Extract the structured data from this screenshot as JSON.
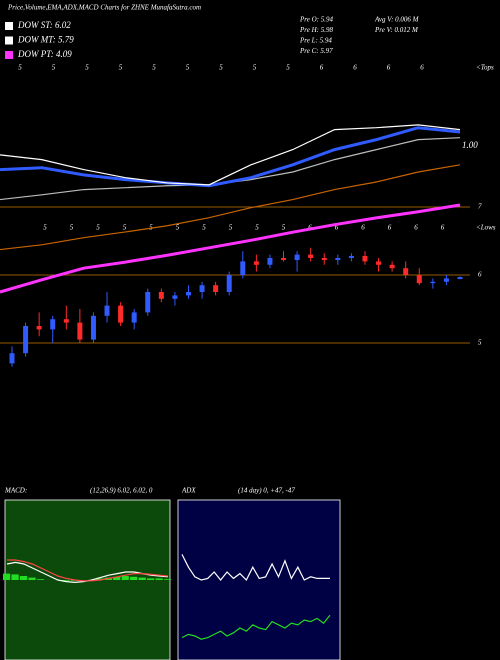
{
  "chart_data": [
    {
      "type": "candlestick",
      "title": "Price,Volume,EMA,ADX,MACD Charts for ZHNE MunafaSutra.com",
      "legend_items": [
        {
          "label": "DOW ST: 6.02",
          "color": "#ffffff"
        },
        {
          "label": "DOW MT: 5.79",
          "color": "#ffffff"
        },
        {
          "label": "DOW PT: 4.09",
          "color": "#ff33ff"
        }
      ],
      "info_left": [
        "Pre  O: 5.94",
        "Pre  H: 5.98",
        "Pre  L: 5.94",
        "Pre  C: 5.97"
      ],
      "info_right": [
        "Avg  V: 0.006  M",
        "Pre  V: 0.012  M"
      ],
      "top_label": "<Tops",
      "low_label": "<Lows",
      "top_markers": [
        "5",
        "5",
        "5",
        "5",
        "5",
        "5",
        "5",
        "5",
        "5",
        "6",
        "6",
        "6",
        "6"
      ],
      "low_markers": [
        "5",
        "5",
        "5",
        "5",
        "5",
        "5",
        "5",
        "5",
        "5",
        "5",
        "6",
        "6",
        "6",
        "6",
        "6",
        "6"
      ],
      "open": [
        4.7,
        4.85,
        5.25,
        5.2,
        5.35,
        5.3,
        5.05,
        5.4,
        5.55,
        5.3,
        5.45,
        5.75,
        5.65,
        5.7,
        5.75,
        5.85,
        5.75,
        6.0,
        6.2,
        6.15,
        6.25,
        6.22,
        6.3,
        6.25,
        6.22,
        6.25,
        6.28,
        6.2,
        6.15,
        6.1,
        6.0,
        5.88,
        5.9,
        5.94
      ],
      "high": [
        4.95,
        5.3,
        5.45,
        5.4,
        5.55,
        5.5,
        5.45,
        5.75,
        5.6,
        5.5,
        5.8,
        5.8,
        5.75,
        5.85,
        5.9,
        5.9,
        6.05,
        6.35,
        6.3,
        6.3,
        6.35,
        6.35,
        6.4,
        6.32,
        6.3,
        6.32,
        6.35,
        6.25,
        6.2,
        6.2,
        6.1,
        5.95,
        6.0,
        5.98
      ],
      "low": [
        4.65,
        4.8,
        5.1,
        5.0,
        5.2,
        5.0,
        5.0,
        5.3,
        5.25,
        5.2,
        5.4,
        5.6,
        5.55,
        5.65,
        5.65,
        5.7,
        5.7,
        5.95,
        6.05,
        6.1,
        6.2,
        6.05,
        6.2,
        6.15,
        6.15,
        6.2,
        6.15,
        6.05,
        6.05,
        5.95,
        5.85,
        5.8,
        5.85,
        5.94
      ],
      "close": [
        4.85,
        5.25,
        5.2,
        5.35,
        5.3,
        5.05,
        5.4,
        5.55,
        5.3,
        5.45,
        5.75,
        5.65,
        5.7,
        5.75,
        5.85,
        5.75,
        6.0,
        6.2,
        6.15,
        6.25,
        6.22,
        6.3,
        6.25,
        6.22,
        6.25,
        6.28,
        6.2,
        6.15,
        6.1,
        6.0,
        5.88,
        5.9,
        5.95,
        5.97
      ],
      "up_color": "#2f5bff",
      "down_color": "#ff2a2a",
      "ylim": [
        3,
        10
      ],
      "yticks": [
        5,
        6,
        7
      ],
      "grid": true,
      "grid_color": "#c87800",
      "y2lim": [
        0.3,
        1.3
      ],
      "y2ticks": [
        {
          "value": 1,
          "label": "1.00"
        }
      ],
      "series": [
        {
          "color": "#c86400",
          "axis": "y2",
          "values": [
            0.782,
            0.792,
            0.807,
            0.819,
            0.832,
            0.849,
            0.87,
            0.887,
            0.908,
            0.924,
            0.945,
            0.96
          ]
        },
        {
          "color": "#bbbbbb",
          "axis": "y2",
          "values": [
            0.887,
            0.897,
            0.908,
            0.912,
            0.916,
            0.918,
            0.929,
            0.945,
            0.971,
            0.992,
            1.013,
            1.017
          ]
        },
        {
          "color": "#2f5bff",
          "axis": "y2",
          "values": [
            0.95,
            0.954,
            0.939,
            0.929,
            0.922,
            0.916,
            0.933,
            0.96,
            0.992,
            1.013,
            1.038,
            1.029
          ]
        },
        {
          "color": "#ffffff",
          "axis": "y2",
          "values": [
            0.981,
            0.971,
            0.95,
            0.933,
            0.922,
            0.918,
            0.96,
            0.992,
            1.034,
            1.038,
            1.044,
            1.034
          ]
        },
        {
          "color": "#ff33ff",
          "values": [
            5.75,
            5.93,
            6.1,
            6.19,
            6.29,
            6.4,
            6.51,
            6.63,
            6.74,
            6.84,
            6.93,
            7.03
          ]
        }
      ]
    },
    {
      "type": "macd",
      "title": "MACD:",
      "subtitle": "(12,26,9) 6.02, 6.02, 0",
      "background": "#0b4a0b",
      "ylim": [
        -1,
        1
      ],
      "histogram": {
        "color": "#22dd22",
        "values": [
          0.08,
          0.07,
          0.05,
          0.03,
          0.01,
          0,
          0,
          -0.01,
          -0.01,
          0,
          0,
          0.02,
          0.03,
          0.04,
          0.05,
          0.04,
          0.03,
          0.02,
          0.02,
          0.01
        ]
      },
      "series": [
        {
          "color": "#ffffff",
          "values": [
            0.2,
            0.22,
            0.2,
            0.15,
            0.1,
            0.05,
            0.0,
            -0.02,
            -0.03,
            -0.02,
            0.0,
            0.03,
            0.06,
            0.08,
            0.1,
            0.1,
            0.08,
            0.06,
            0.05,
            0.04
          ]
        },
        {
          "color": "#ff4444",
          "values": [
            0.25,
            0.25,
            0.23,
            0.2,
            0.15,
            0.1,
            0.05,
            0.02,
            0.0,
            -0.01,
            -0.01,
            0.0,
            0.02,
            0.04,
            0.06,
            0.08,
            0.08,
            0.07,
            0.06,
            0.05
          ]
        }
      ]
    },
    {
      "type": "line",
      "title": "ADX",
      "subtitle": "(14  day) 0, +47, -47",
      "background": "#000044",
      "ylim": [
        0,
        100
      ],
      "series": [
        {
          "color": "#ffffff",
          "values": [
            66,
            58,
            52,
            50,
            51,
            55,
            50,
            55,
            51,
            54,
            50,
            58,
            51,
            52,
            60,
            52,
            62,
            51,
            58,
            50,
            52,
            51,
            51,
            51
          ]
        },
        {
          "color": "#22dd22",
          "values": [
            14,
            16,
            15,
            13,
            14,
            16,
            18,
            15,
            17,
            20,
            18,
            22,
            20,
            19,
            24,
            22,
            20,
            23,
            22,
            25,
            24,
            26,
            23,
            28
          ]
        }
      ]
    }
  ]
}
